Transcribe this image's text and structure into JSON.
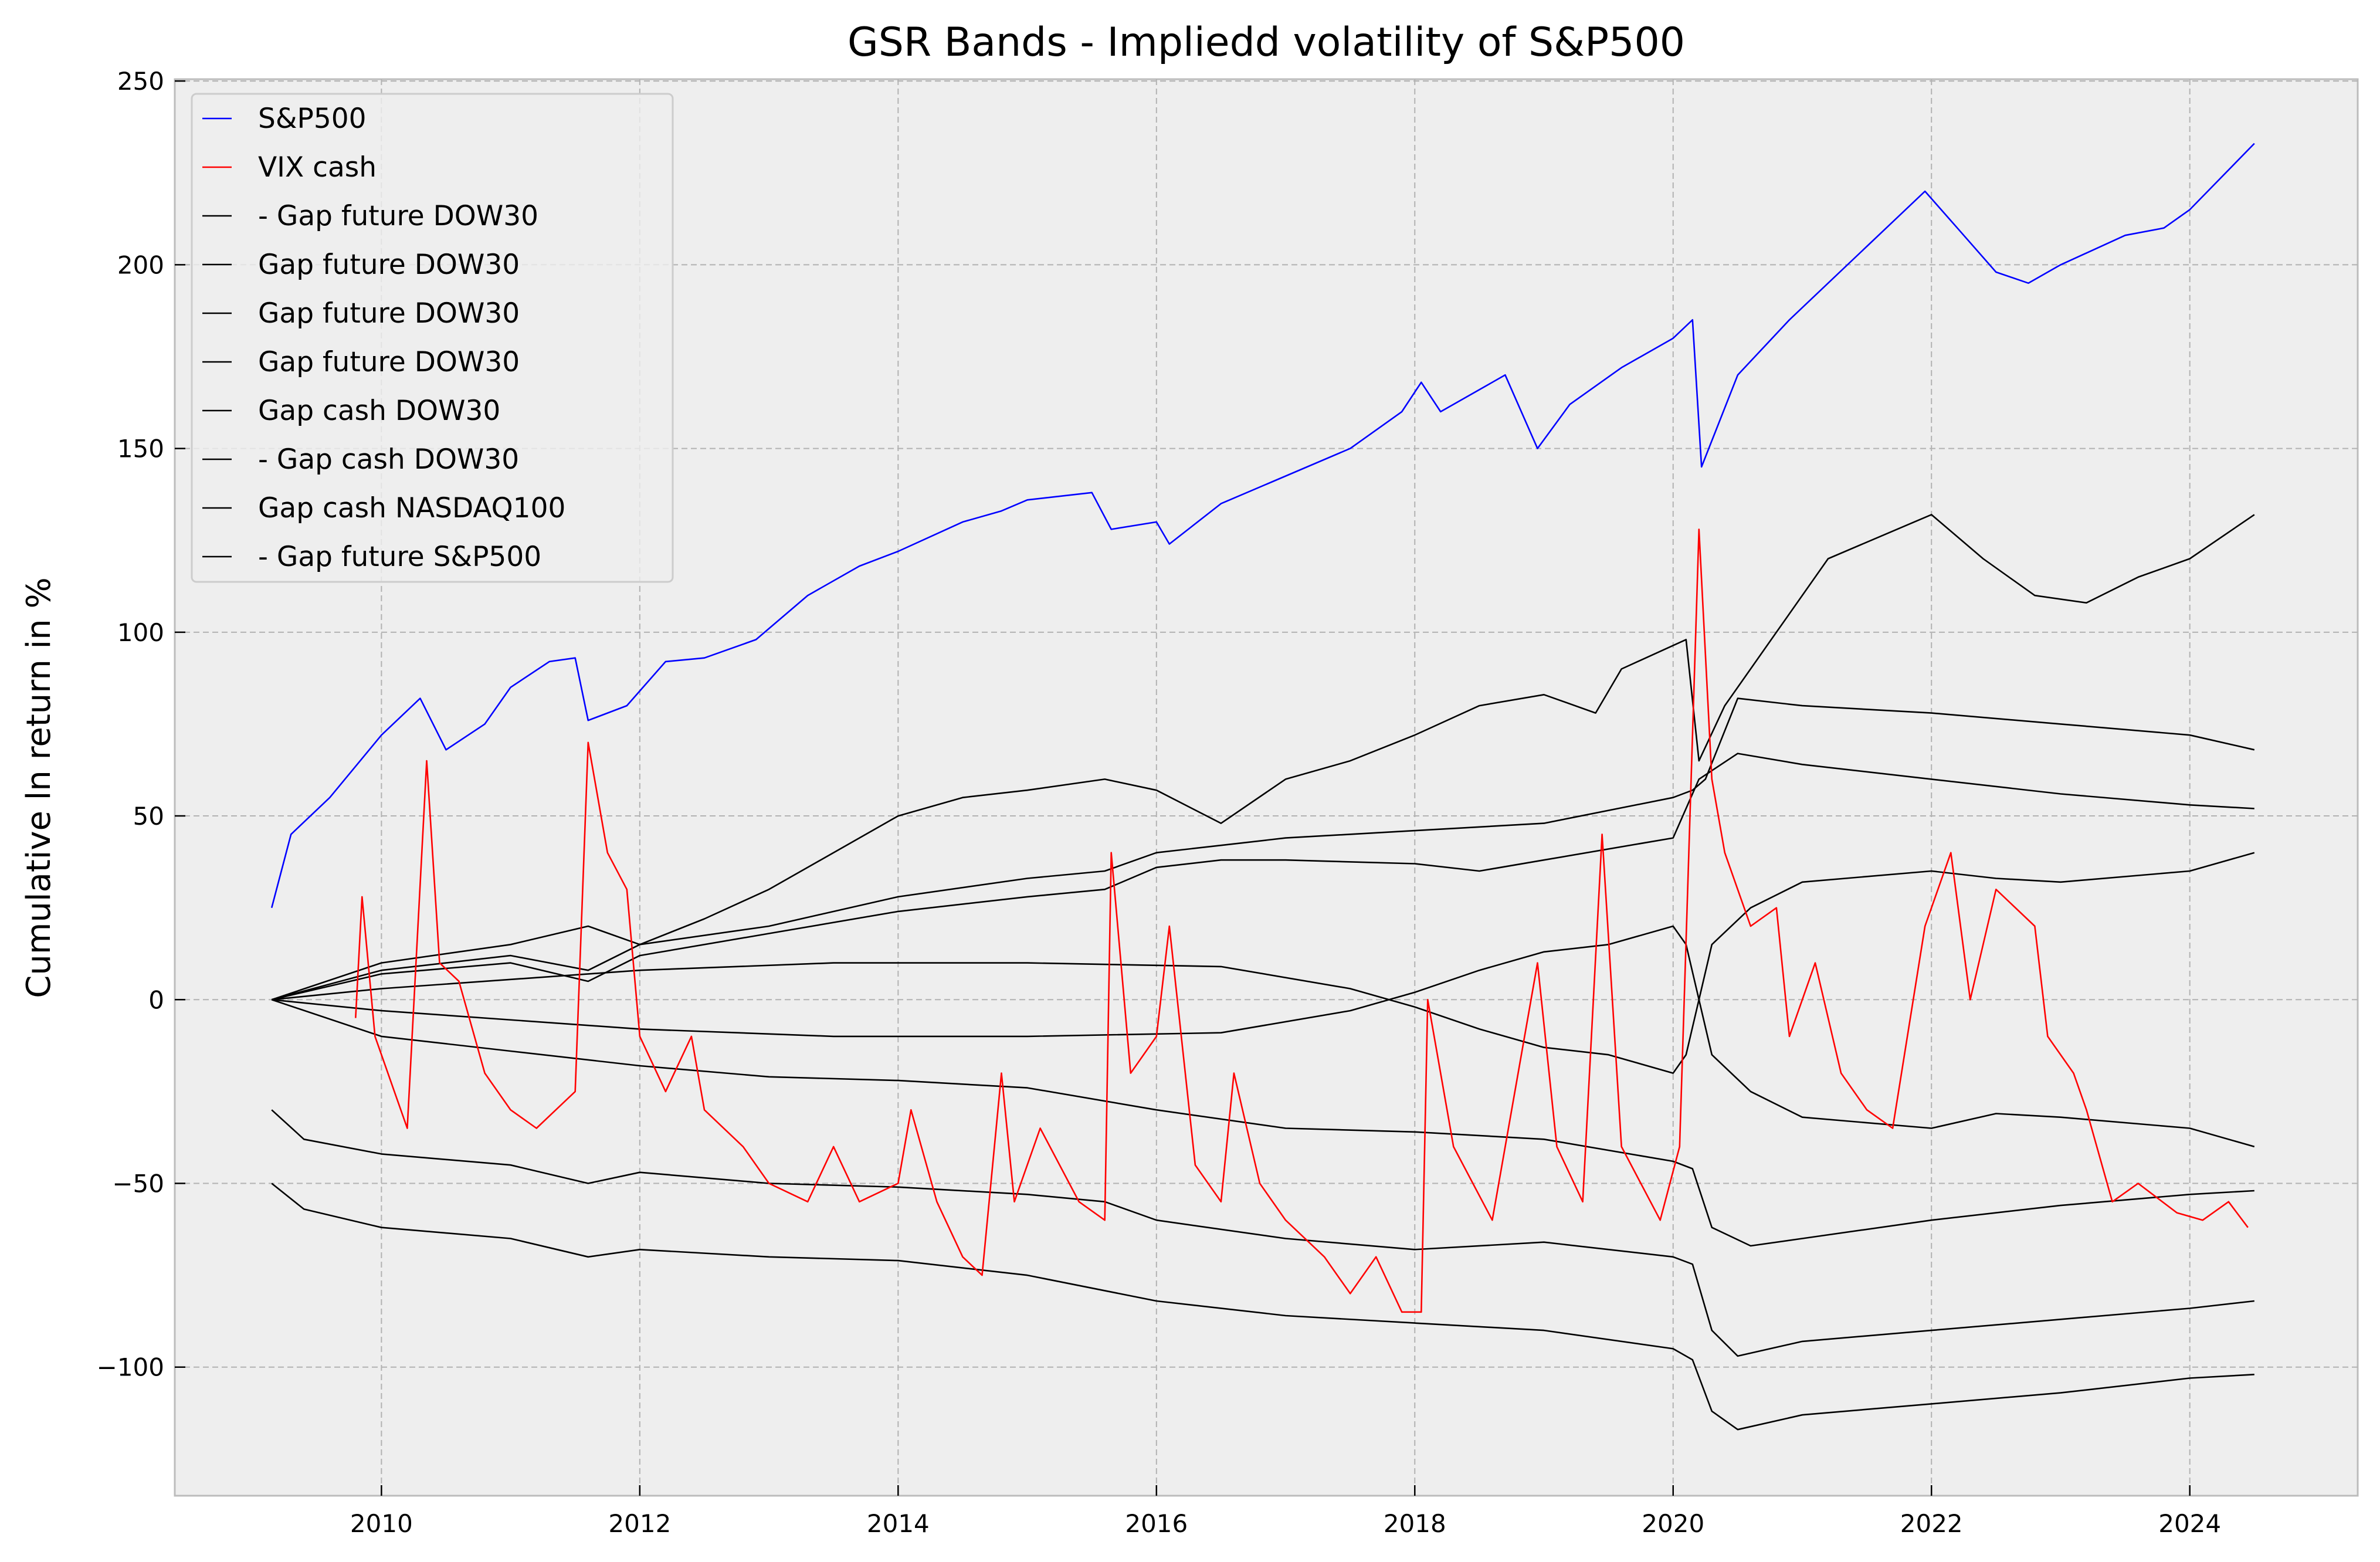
{
  "chart_data": {
    "type": "line",
    "title": "GSR Bands - Impliedd volatility of S&P500",
    "xlabel": "",
    "ylabel": "Cumulative ln return in %",
    "xlim": [
      2008.4,
      2025.3
    ],
    "ylim": [
      -135,
      250.5
    ],
    "xticks": [
      2010,
      2012,
      2014,
      2016,
      2018,
      2020,
      2022,
      2024
    ],
    "xtick_labels": [
      "2010",
      "2012",
      "2014",
      "2016",
      "2018",
      "2020",
      "2022",
      "2024"
    ],
    "yticks": [
      250,
      200,
      150,
      100,
      50,
      0,
      -50,
      -100
    ],
    "ytick_labels": [
      "250",
      "200",
      "150",
      "100",
      "50",
      "0",
      "−50",
      "−100"
    ],
    "grid": true,
    "legend_position": "top-left",
    "series": [
      {
        "name": "S&P500",
        "color": "#0000ff",
        "x": [
          2009.15,
          2009.3,
          2009.6,
          2010.0,
          2010.3,
          2010.5,
          2010.8,
          2011.0,
          2011.3,
          2011.5,
          2011.6,
          2011.9,
          2012.2,
          2012.5,
          2012.9,
          2013.3,
          2013.7,
          2014.0,
          2014.5,
          2014.8,
          2015.0,
          2015.5,
          2015.65,
          2016.0,
          2016.1,
          2016.5,
          2016.9,
          2017.5,
          2017.9,
          2018.05,
          2018.2,
          2018.7,
          2018.95,
          2019.2,
          2019.6,
          2020.0,
          2020.15,
          2020.22,
          2020.5,
          2020.9,
          2021.5,
          2021.95,
          2022.2,
          2022.5,
          2022.75,
          2023.0,
          2023.5,
          2023.8,
          2024.0,
          2024.5
        ],
        "y": [
          25,
          45,
          55,
          72,
          82,
          68,
          75,
          85,
          92,
          93,
          76,
          80,
          92,
          93,
          98,
          110,
          118,
          122,
          130,
          133,
          136,
          138,
          128,
          130,
          124,
          135,
          141,
          150,
          160,
          168,
          160,
          170,
          150,
          162,
          172,
          180,
          185,
          145,
          170,
          185,
          205,
          220,
          210,
          198,
          195,
          200,
          208,
          210,
          215,
          233
        ]
      },
      {
        "name": "VIX cash",
        "color": "#ff0000",
        "x": [
          2009.8,
          2009.85,
          2009.95,
          2010.1,
          2010.2,
          2010.35,
          2010.45,
          2010.6,
          2010.8,
          2011.0,
          2011.2,
          2011.5,
          2011.6,
          2011.75,
          2011.9,
          2012.0,
          2012.2,
          2012.4,
          2012.5,
          2012.8,
          2013.0,
          2013.3,
          2013.5,
          2013.7,
          2014.0,
          2014.1,
          2014.3,
          2014.5,
          2014.65,
          2014.8,
          2014.9,
          2015.1,
          2015.4,
          2015.6,
          2015.65,
          2015.8,
          2016.0,
          2016.1,
          2016.3,
          2016.5,
          2016.6,
          2016.8,
          2017.0,
          2017.3,
          2017.5,
          2017.7,
          2017.9,
          2018.05,
          2018.1,
          2018.3,
          2018.6,
          2018.95,
          2019.1,
          2019.3,
          2019.45,
          2019.6,
          2019.9,
          2020.05,
          2020.2,
          2020.3,
          2020.4,
          2020.6,
          2020.8,
          2020.9,
          2021.1,
          2021.3,
          2021.5,
          2021.7,
          2021.95,
          2022.15,
          2022.3,
          2022.5,
          2022.8,
          2022.9,
          2023.1,
          2023.2,
          2023.4,
          2023.6,
          2023.9,
          2024.1,
          2024.3,
          2024.45
        ],
        "y": [
          -5,
          28,
          -10,
          -25,
          -35,
          65,
          10,
          5,
          -20,
          -30,
          -35,
          -25,
          70,
          40,
          30,
          -10,
          -25,
          -10,
          -30,
          -40,
          -50,
          -55,
          -40,
          -55,
          -50,
          -30,
          -55,
          -70,
          -75,
          -20,
          -55,
          -35,
          -55,
          -60,
          40,
          -20,
          -10,
          20,
          -45,
          -55,
          -20,
          -50,
          -60,
          -70,
          -80,
          -70,
          -85,
          -85,
          0,
          -40,
          -60,
          10,
          -40,
          -55,
          45,
          -40,
          -60,
          -40,
          128,
          60,
          40,
          20,
          25,
          -10,
          10,
          -20,
          -30,
          -35,
          20,
          40,
          0,
          30,
          20,
          -10,
          -20,
          -30,
          -55,
          -50,
          -58,
          -60,
          -55,
          -62
        ]
      },
      {
        "name": "- Gap future DOW30",
        "color": "#000000",
        "x": [
          2009.15,
          2010,
          2011,
          2011.6,
          2012,
          2012.5,
          2013,
          2014,
          2014.5,
          2015,
          2015.6,
          2016,
          2016.5,
          2017,
          2017.5,
          2018,
          2018.5,
          2019,
          2019.4,
          2019.6,
          2020.1,
          2020.2,
          2020.4,
          2020.8,
          2021.2,
          2021.6,
          2022.0,
          2022.4,
          2022.8,
          2023.2,
          2023.6,
          2024.0,
          2024.5
        ],
        "y": [
          0,
          10,
          15,
          20,
          15,
          22,
          30,
          50,
          55,
          57,
          60,
          57,
          48,
          60,
          65,
          72,
          80,
          83,
          78,
          90,
          98,
          65,
          80,
          100,
          120,
          126,
          132,
          120,
          110,
          108,
          115,
          120,
          132
        ]
      },
      {
        "name": "Gap future DOW30",
        "color": "#000000",
        "x": [
          2009.15,
          2010,
          2011,
          2011.6,
          2012,
          2013,
          2014,
          2015,
          2015.6,
          2016,
          2016.5,
          2017,
          2018,
          2019,
          2020,
          2020.15,
          2020.25,
          2020.5,
          2021,
          2022,
          2023,
          2024,
          2024.5
        ],
        "y": [
          0,
          8,
          12,
          8,
          15,
          20,
          28,
          33,
          35,
          40,
          42,
          44,
          46,
          48,
          55,
          57,
          60,
          82,
          80,
          78,
          75,
          72,
          68
        ]
      },
      {
        "name": "Gap future DOW30",
        "color": "#000000",
        "x": [
          2009.15,
          2010,
          2011,
          2011.6,
          2012,
          2013,
          2014,
          2015,
          2015.6,
          2016,
          2016.5,
          2017,
          2018,
          2018.5,
          2019,
          2020,
          2020.2,
          2020.5,
          2021,
          2022,
          2023,
          2024,
          2024.5
        ],
        "y": [
          0,
          7,
          10,
          5,
          12,
          18,
          24,
          28,
          30,
          36,
          38,
          38,
          37,
          35,
          38,
          44,
          60,
          67,
          64,
          60,
          56,
          53,
          52
        ]
      },
      {
        "name": "Gap future DOW30",
        "color": "#000000",
        "x": [
          2009.15,
          2010,
          2012,
          2013.5,
          2015,
          2016.5,
          2017.5,
          2018,
          2018.5,
          2019,
          2019.5,
          2020,
          2020.1,
          2020.3,
          2020.6,
          2021,
          2022,
          2022.5,
          2023,
          2024,
          2024.5
        ],
        "y": [
          0,
          3,
          8,
          10,
          10,
          9,
          3,
          -2,
          -8,
          -13,
          -15,
          -20,
          -15,
          15,
          25,
          32,
          35,
          33,
          32,
          35,
          40
        ]
      },
      {
        "name": "Gap cash DOW30",
        "color": "#000000",
        "x": [
          2009.15,
          2010,
          2012,
          2013.5,
          2015,
          2016.5,
          2017.5,
          2018,
          2018.5,
          2019,
          2019.5,
          2020,
          2020.1,
          2020.3,
          2020.6,
          2021,
          2022,
          2022.5,
          2023,
          2024,
          2024.5
        ],
        "y": [
          0,
          -3,
          -8,
          -10,
          -10,
          -9,
          -3,
          2,
          8,
          13,
          15,
          20,
          15,
          -15,
          -25,
          -32,
          -35,
          -31,
          -32,
          -35,
          -40
        ]
      },
      {
        "name": "- Gap cash DOW30",
        "color": "#000000",
        "x": [
          2009.15,
          2010,
          2011,
          2012,
          2013,
          2014,
          2015,
          2016,
          2017,
          2018,
          2019,
          2020,
          2020.15,
          2020.3,
          2020.6,
          2021,
          2022,
          2023,
          2024,
          2024.5
        ],
        "y": [
          0,
          -10,
          -14,
          -18,
          -21,
          -22,
          -24,
          -30,
          -35,
          -36,
          -38,
          -44,
          -46,
          -62,
          -67,
          -65,
          -60,
          -56,
          -53,
          -52
        ]
      },
      {
        "name": "Gap cash NASDAQ100",
        "color": "#000000",
        "x": [
          2009.15,
          2009.4,
          2010,
          2011,
          2011.6,
          2012,
          2013,
          2014,
          2015,
          2015.6,
          2016,
          2017,
          2018,
          2019,
          2020,
          2020.15,
          2020.3,
          2020.5,
          2021,
          2022,
          2023,
          2024,
          2024.5
        ],
        "y": [
          -30,
          -38,
          -42,
          -45,
          -50,
          -47,
          -50,
          -51,
          -53,
          -55,
          -60,
          -65,
          -68,
          -66,
          -70,
          -72,
          -90,
          -97,
          -93,
          -90,
          -87,
          -84,
          -82
        ]
      },
      {
        "name": "- Gap future S&P500",
        "color": "#000000",
        "x": [
          2009.15,
          2009.4,
          2010,
          2011,
          2011.6,
          2012,
          2013,
          2014,
          2015,
          2016,
          2017,
          2018,
          2019,
          2020,
          2020.15,
          2020.3,
          2020.5,
          2021,
          2022,
          2023,
          2024,
          2024.5
        ],
        "y": [
          -50,
          -57,
          -62,
          -65,
          -70,
          -68,
          -70,
          -71,
          -75,
          -82,
          -86,
          -88,
          -90,
          -95,
          -98,
          -112,
          -117,
          -113,
          -110,
          -107,
          -103,
          -102
        ]
      }
    ]
  }
}
